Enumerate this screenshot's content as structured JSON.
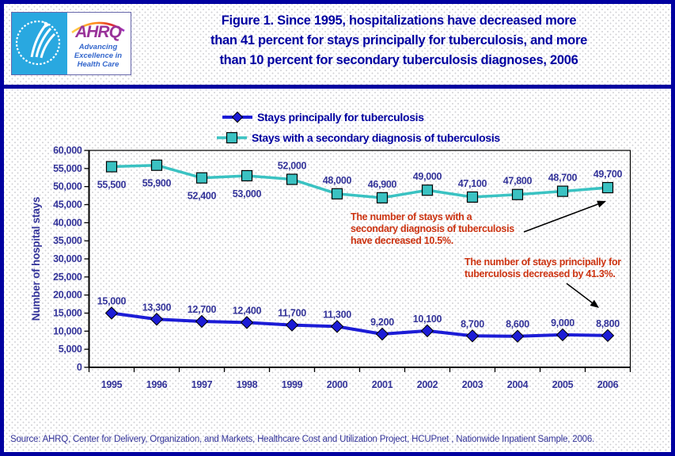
{
  "header": {
    "title": "Figure 1. Since 1995, hospitalizations have decreased more\nthan 41 percent for stays principally for tuberculosis, and more\nthan 10 percent for secondary tuberculosis diagnoses, 2006"
  },
  "logo": {
    "acronym": "AHRQ",
    "tagline": "Advancing\nExcellence in\nHealth Care"
  },
  "chart_data": {
    "type": "line",
    "x": [
      "1995",
      "1996",
      "1997",
      "1998",
      "1999",
      "2000",
      "2001",
      "2002",
      "2003",
      "2004",
      "2005",
      "2006"
    ],
    "series": [
      {
        "name": "Stays principally for tuberculosis",
        "color": "#1c1cd6",
        "marker": "diamond",
        "width": 4,
        "values": [
          15000,
          13300,
          12700,
          12400,
          11700,
          11300,
          9200,
          10100,
          8700,
          8600,
          9000,
          8800
        ],
        "labels": [
          "15,000",
          "13,300",
          "12,700",
          "12,400",
          "11,700",
          "11,300",
          "9,200",
          "10,100",
          "8,700",
          "8,600",
          "9,000",
          "8,800"
        ],
        "label_side": [
          "above",
          "above",
          "above",
          "above",
          "above",
          "above",
          "above",
          "above",
          "above",
          "above",
          "above",
          "above"
        ]
      },
      {
        "name": "Stays with a secondary diagnosis of tuberculosis",
        "color": "#3ac2c2",
        "marker": "square",
        "width": 3.5,
        "values": [
          55500,
          55900,
          52400,
          53000,
          52000,
          48000,
          46900,
          49000,
          47100,
          47800,
          48700,
          49700
        ],
        "labels": [
          "55,500",
          "55,900",
          "52,400",
          "53,000",
          "52,000",
          "48,000",
          "46,900",
          "49,000",
          "47,100",
          "47,800",
          "48,700",
          "49,700"
        ],
        "label_side": [
          "below",
          "below",
          "below",
          "below",
          "above",
          "above",
          "above",
          "above",
          "above",
          "above",
          "above",
          "above"
        ]
      }
    ],
    "ylabel": "Number of hospital stays",
    "xlabel": "",
    "ylim": [
      0,
      60000
    ],
    "ytick_step": 5000,
    "yticks": [
      "0",
      "5,000",
      "10,000",
      "15,000",
      "20,000",
      "25,000",
      "30,000",
      "35,000",
      "40,000",
      "45,000",
      "50,000",
      "55,000",
      "60,000"
    ],
    "grid": false,
    "legend_position": "top-center",
    "annotations": [
      {
        "text": "The number of stays with a\nsecondary diagnosis of tuberculosis\nhave decreased 10.5%.",
        "color": "#cc3311"
      },
      {
        "text": "The number of stays principally for\ntuberculosis decreased by 41.3%.",
        "color": "#cc3311"
      }
    ]
  },
  "footer": {
    "source": "Source: AHRQ, Center for Delivery, Organization, and Markets, Healthcare Cost and Utilization Project, HCUPnet , Nationwide Inpatient Sample, 2006."
  }
}
